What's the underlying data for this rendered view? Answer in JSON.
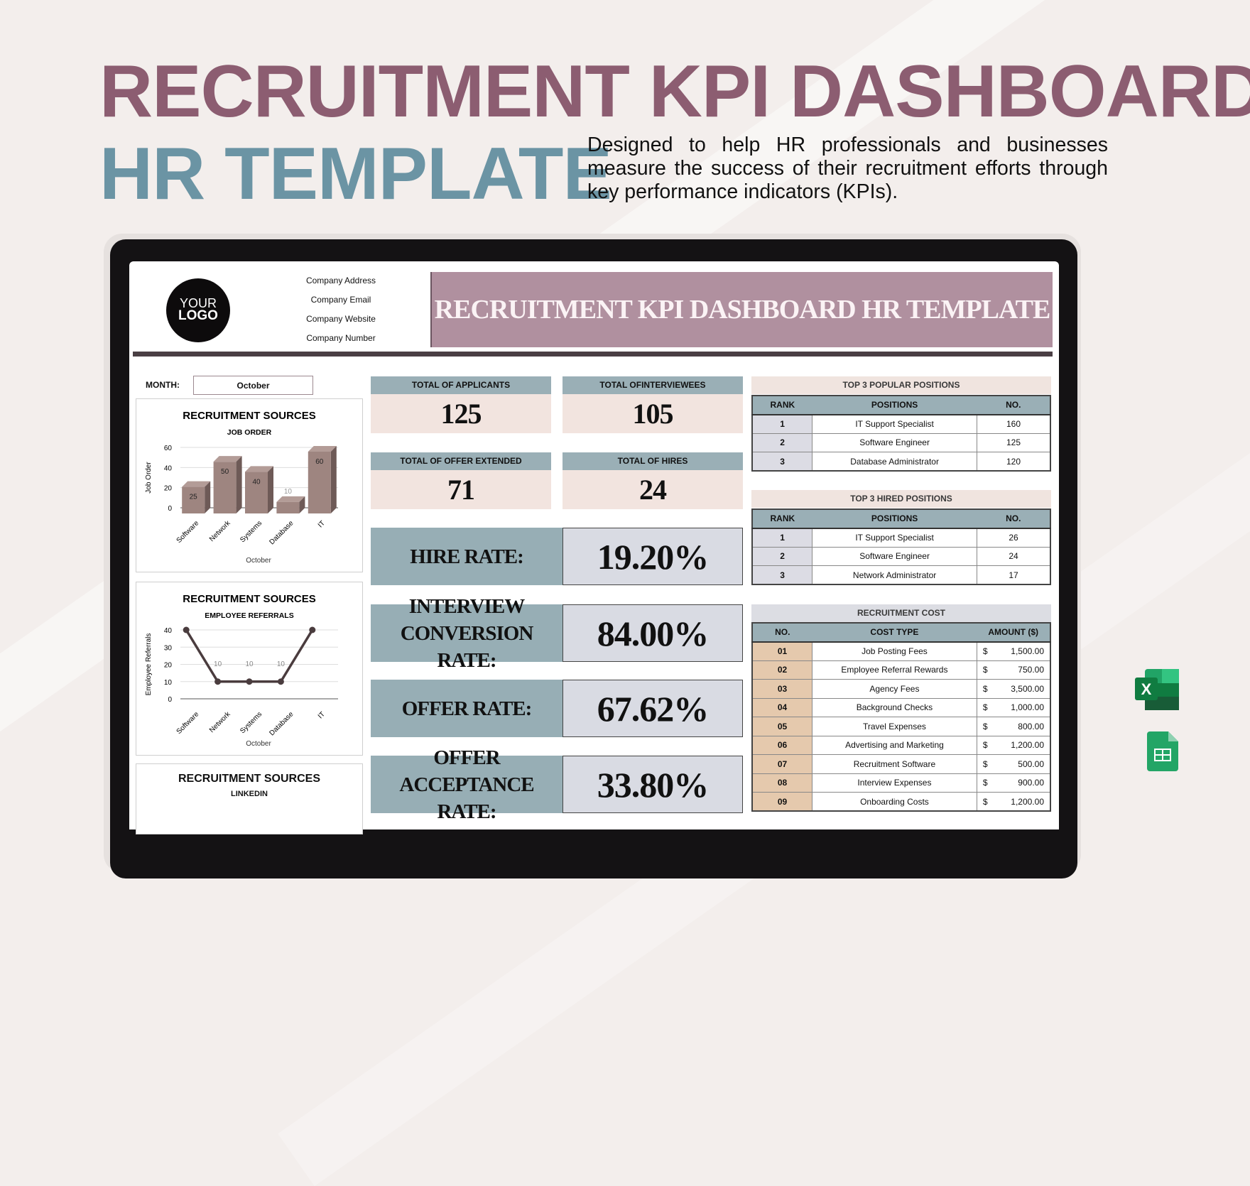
{
  "hero": {
    "title_line1": "RECRUITMENT KPI DASHBOARD",
    "title_line2": "HR TEMPLATE",
    "description": "Designed to help HR professionals and businesses measure the success of their recruitment efforts through key performance indicators (KPIs)."
  },
  "sheet": {
    "logo": {
      "line1": "YOUR",
      "line2": "LOGO"
    },
    "company": [
      "Company Address",
      "Company Email",
      "Company Website",
      "Company Number"
    ],
    "banner_title": "RECRUITMENT KPI DASHBOARD HR TEMPLATE",
    "month_label": "MONTH:",
    "month_value": "October",
    "kpis": [
      {
        "label": "TOTAL OF APPLICANTS",
        "value": "125"
      },
      {
        "label": "TOTAL OFINTERVIEWEES",
        "value": "105"
      },
      {
        "label": "TOTAL OF OFFER EXTENDED",
        "value": "71"
      },
      {
        "label": "TOTAL OF HIRES",
        "value": "24"
      }
    ],
    "rates": [
      {
        "label": "HIRE RATE:",
        "value": "19.20%"
      },
      {
        "label": "INTERVIEW CONVERSION RATE:",
        "value": "84.00%"
      },
      {
        "label": "OFFER RATE:",
        "value": "67.62%"
      },
      {
        "label": "OFFER ACCEPTANCE RATE:",
        "value": "33.80%"
      }
    ],
    "popular": {
      "title": "TOP 3 POPULAR POSITIONS",
      "headers": [
        "RANK",
        "POSITIONS",
        "NO."
      ],
      "rows": [
        [
          "1",
          "IT Support Specialist",
          "160"
        ],
        [
          "2",
          "Software Engineer",
          "125"
        ],
        [
          "3",
          "Database Administrator",
          "120"
        ]
      ]
    },
    "hired": {
      "title": "TOP 3 HIRED POSITIONS",
      "headers": [
        "RANK",
        "POSITIONS",
        "NO."
      ],
      "rows": [
        [
          "1",
          "IT Support Specialist",
          "26"
        ],
        [
          "2",
          "Software Engineer",
          "24"
        ],
        [
          "3",
          "Network Administrator",
          "17"
        ]
      ]
    },
    "cost": {
      "title": "RECRUITMENT COST",
      "headers": [
        "NO.",
        "COST TYPE",
        "AMOUNT ($)"
      ],
      "currency": "$",
      "rows": [
        [
          "01",
          "Job Posting Fees",
          "1,500.00"
        ],
        [
          "02",
          "Employee Referral Rewards",
          "750.00"
        ],
        [
          "03",
          "Agency Fees",
          "3,500.00"
        ],
        [
          "04",
          "Background Checks",
          "1,000.00"
        ],
        [
          "05",
          "Travel Expenses",
          "800.00"
        ],
        [
          "06",
          "Advertising and Marketing",
          "1,200.00"
        ],
        [
          "07",
          "Recruitment Software",
          "500.00"
        ],
        [
          "08",
          "Interview Expenses",
          "900.00"
        ],
        [
          "09",
          "Onboarding Costs",
          "1,200.00"
        ]
      ]
    },
    "linkedin_card": {
      "title": "RECRUITMENT SOURCES",
      "subtitle": "LINKEDIN"
    }
  },
  "icons": [
    "excel-icon",
    "google-sheets-icon"
  ],
  "colors": {
    "title_mauve": "#8c5d71",
    "title_teal": "#6b94a4",
    "banner": "#b0909f",
    "slate": "#9aafb6",
    "pink": "#f2e4df",
    "bar": "#9e8580"
  },
  "chart_data": [
    {
      "type": "bar",
      "title": "RECRUITMENT SOURCES",
      "subtitle": "JOB ORDER",
      "categories": [
        "Software",
        "Network",
        "Systems",
        "Database",
        "IT"
      ],
      "values": [
        25,
        50,
        40,
        10,
        60
      ],
      "xlabel": "October",
      "ylabel": "Job Order",
      "ylim": [
        0,
        60
      ],
      "yticks": [
        0,
        20,
        40,
        60
      ],
      "grid": true,
      "style": "3d"
    },
    {
      "type": "line",
      "title": "RECRUITMENT SOURCES",
      "subtitle": "EMPLOYEE REFERRALS",
      "categories": [
        "Software",
        "Network",
        "Systems",
        "Database",
        "IT"
      ],
      "values": [
        40,
        10,
        10,
        10,
        40
      ],
      "data_labels": [
        "",
        "10",
        "10",
        "10",
        ""
      ],
      "xlabel": "October",
      "ylabel": "Employee Referrals",
      "ylim": [
        0,
        40
      ],
      "yticks": [
        0,
        10,
        20,
        30,
        40
      ],
      "grid": true
    }
  ]
}
